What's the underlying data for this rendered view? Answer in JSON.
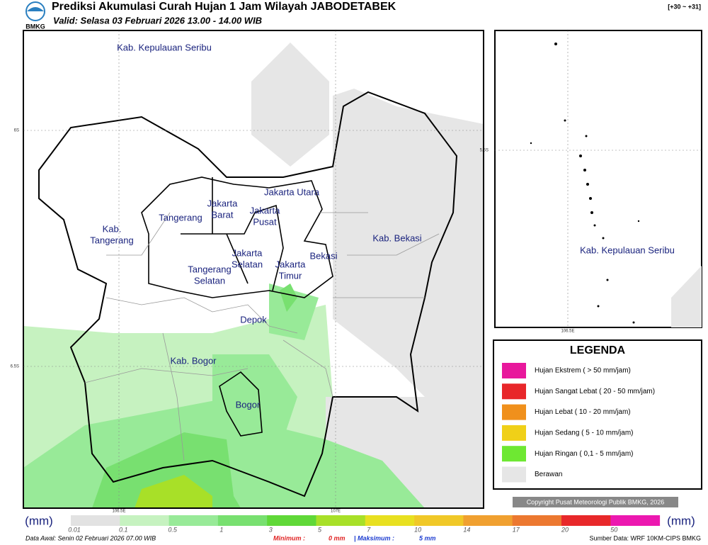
{
  "header": {
    "title": "Prediksi Akumulasi Curah Hujan 1 Jam Wilayah JABODETABEK",
    "subtitle": "Valid: Selasa 03 Februari 2026 13.00 - 14.00 WIB",
    "logo": "BMKG",
    "range": "[+30 ~ +31]"
  },
  "map": {
    "labels": [
      {
        "lines": [
          "Kab. Kepulauan Seribu"
        ]
      },
      {
        "lines": [
          "Jakarta Utara"
        ]
      },
      {
        "lines": [
          "Jakarta",
          "Barat"
        ]
      },
      {
        "lines": [
          "Jakarta",
          "Pusat"
        ]
      },
      {
        "lines": [
          "Tangerang"
        ]
      },
      {
        "lines": [
          "Kab.",
          "Tangerang"
        ]
      },
      {
        "lines": [
          "Kab. Bekasi"
        ]
      },
      {
        "lines": [
          "Jakarta",
          "Selatan"
        ]
      },
      {
        "lines": [
          "Bekasi"
        ]
      },
      {
        "lines": [
          "Jakarta",
          "Timur"
        ]
      },
      {
        "lines": [
          "Tangerang",
          "Selatan"
        ]
      },
      {
        "lines": [
          "Depok"
        ]
      },
      {
        "lines": [
          "Kab. Bogor"
        ]
      },
      {
        "lines": [
          "Bogor"
        ]
      }
    ],
    "coordinates": [
      "6S",
      "6.5S",
      "106.5E",
      "107E"
    ]
  },
  "inset": {
    "label": "Kab. Kepulauan Seribu",
    "coordinates": [
      "5.5S",
      "106.5E"
    ]
  },
  "legend": {
    "title": "LEGENDA",
    "items": [
      {
        "label": "Hujan Ekstrem ( > 50 mm/jam)",
        "color": "#e8189c"
      },
      {
        "label": "Hujan Sangat Lebat ( 20 - 50 mm/jam)",
        "color": "#e8262a"
      },
      {
        "label": "Hujan Lebat ( 10 - 20 mm/jam)",
        "color": "#f0901c"
      },
      {
        "label": "Hujan Sedang ( 5 - 10 mm/jam)",
        "color": "#f0d018"
      },
      {
        "label": "Hujan Ringan ( 0,1 - 5 mm/jam)",
        "color": "#6ee832"
      },
      {
        "label": "Berawan",
        "color": "#e6e6e6"
      }
    ]
  },
  "copyright": "Copyright Pusat Meteorologi Publik BMKG, 2026",
  "colorbar": {
    "unit": "(mm)",
    "ticks": [
      "0.01",
      "0.1",
      "0.5",
      "1",
      "3",
      "5",
      "7",
      "10",
      "14",
      "17",
      "20",
      "50"
    ],
    "colors": [
      "#e2e2e2",
      "#c6f2c0",
      "#98ea98",
      "#78e070",
      "#60d838",
      "#a8e028",
      "#e8e020",
      "#f0c828",
      "#f0a030",
      "#ec7830",
      "#e8282a",
      "#ec18b0"
    ]
  },
  "footer": {
    "data_awal": "Data Awal: Senin 02 Februari 2026 07.00 WIB",
    "minimum_label": "Minimum :",
    "minimum": "0 mm",
    "maximum_label": "| Maksimum :",
    "maximum": "5 mm",
    "source": "Sumber Data: WRF 10KM-CIPS BMKG"
  }
}
